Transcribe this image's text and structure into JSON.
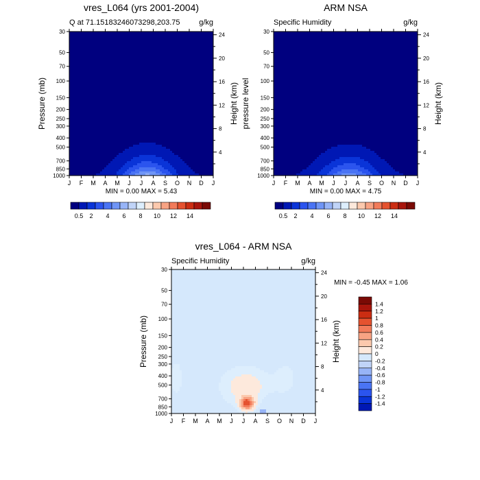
{
  "colors": {
    "cmap": [
      "#00007f",
      "#0018b4",
      "#0a34d8",
      "#2b54ee",
      "#4a74f4",
      "#6f95f6",
      "#97b4f7",
      "#c0d4f8",
      "#ddeefd",
      "#fde9dc",
      "#fcc9ad",
      "#f8a383",
      "#f27b5a",
      "#e5522f",
      "#cb2d12",
      "#a8150c",
      "#7a0a05"
    ],
    "diff_near_zero": "#d5e8fc"
  },
  "panels": [
    {
      "title": "vres_L064 (yrs 2001-2004)",
      "left_label": "Q at 71.15183246073298,203.75",
      "right_label": "g/kg",
      "ylabel": "Pressure (mb)",
      "y2label": "Height (km)",
      "minmax": "MIN =   0.00 MAX =   5.43"
    },
    {
      "title": "ARM NSA",
      "left_label": "Specific Humidity",
      "right_label": "g/kg",
      "ylabel": "pressure level",
      "y2label": "Height (km)",
      "minmax": "MIN =   0.00 MAX =   4.75"
    },
    {
      "title": "vres_L064 - ARM NSA",
      "left_label": "Specific Humidity",
      "right_label": "g/kg",
      "ylabel": "Pressure (mb)",
      "y2label": "Height (km)",
      "minmax": "MIN =  -0.45 MAX =   1.06"
    }
  ],
  "chart_data": [
    {
      "type": "heatmap",
      "title": "vres_L064 (yrs 2001-2004)",
      "x_ticks": [
        "J",
        "F",
        "M",
        "A",
        "M",
        "J",
        "J",
        "A",
        "S",
        "O",
        "N",
        "D",
        "J"
      ],
      "y_pressure_ticks": [
        30,
        50,
        70,
        100,
        150,
        200,
        250,
        300,
        400,
        500,
        700,
        850,
        1000
      ],
      "y_height_ticks": [
        4,
        8,
        12,
        16,
        20,
        24
      ],
      "ylabel": "Pressure (mb)",
      "y2label": "Height (km)",
      "units": "g/kg",
      "min": 0.0,
      "max": 5.43,
      "peak_month": 7.5,
      "peak_pressure": 1000
    },
    {
      "type": "heatmap",
      "title": "ARM NSA",
      "x_ticks": [
        "J",
        "F",
        "M",
        "A",
        "M",
        "J",
        "J",
        "A",
        "S",
        "O",
        "N",
        "D",
        "J"
      ],
      "y_pressure_ticks": [
        30,
        50,
        70,
        100,
        150,
        200,
        250,
        300,
        400,
        500,
        700,
        850,
        1000
      ],
      "y_height_ticks": [
        4,
        8,
        12,
        16,
        20,
        24
      ],
      "ylabel": "pressure level",
      "y2label": "Height (km)",
      "units": "g/kg",
      "min": 0.0,
      "max": 4.75,
      "peak_month": 7.3,
      "peak_pressure": 1000
    },
    {
      "type": "heatmap",
      "title": "vres_L064 - ARM NSA",
      "x_ticks": [
        "J",
        "F",
        "M",
        "A",
        "M",
        "J",
        "J",
        "A",
        "S",
        "O",
        "N",
        "D",
        "J"
      ],
      "y_pressure_ticks": [
        30,
        50,
        70,
        100,
        150,
        200,
        250,
        300,
        400,
        500,
        700,
        850,
        1000
      ],
      "y_height_ticks": [
        4,
        8,
        12,
        16,
        20,
        24
      ],
      "ylabel": "Pressure (mb)",
      "y2label": "Height (km)",
      "units": "g/kg",
      "min": -0.45,
      "max": 1.06,
      "peak_month": 7.3,
      "peak_pressure": 780
    }
  ],
  "colorbar_top": {
    "labels": [
      "0.5",
      "2",
      "4",
      "6",
      "8",
      "10",
      "12",
      "14"
    ]
  },
  "colorbar_diff": {
    "labels": [
      "1.4",
      "1.2",
      "1",
      "0.8",
      "0.6",
      "0.4",
      "0.2",
      "0",
      "-0.2",
      "-0.4",
      "-0.6",
      "-0.8",
      "-1",
      "-1.2",
      "-1.4"
    ]
  }
}
